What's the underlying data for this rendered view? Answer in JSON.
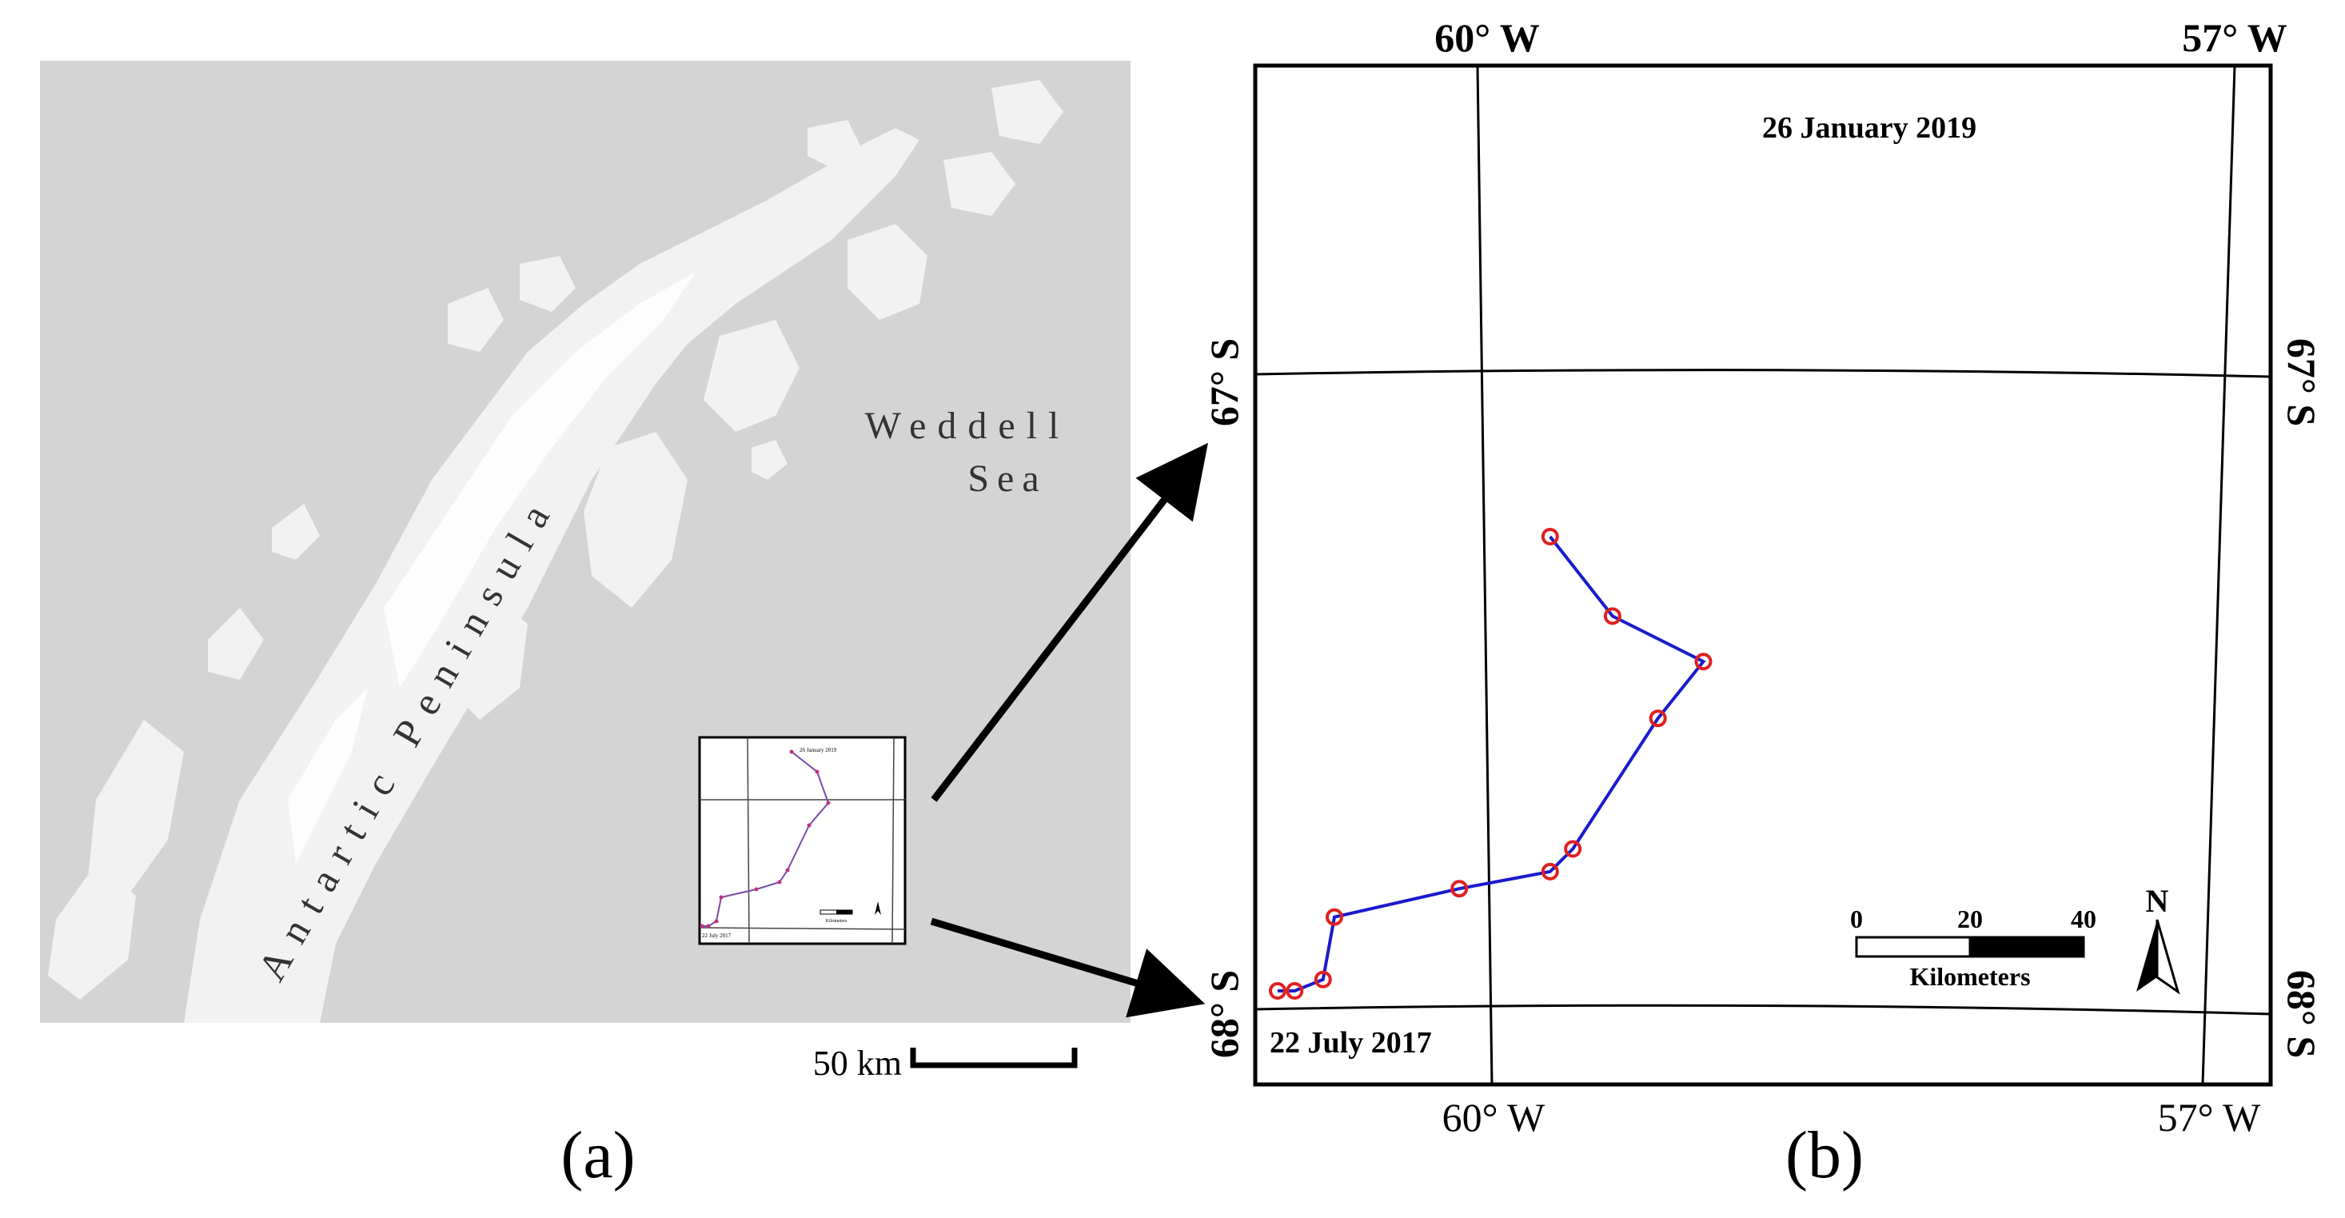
{
  "panel_a": {
    "caption": "(a)",
    "peninsula_label": "Antartic Peninsula",
    "sea_label_line1": "Weddell",
    "sea_label_line2": "Sea",
    "scale_bar_label": "50 km",
    "colors": {
      "sea": "#d4d4d4",
      "land": "#f2f2f2",
      "land_shade": "#ffffff"
    }
  },
  "panel_b": {
    "caption": "(b)",
    "lon_labels": {
      "left": "60° W",
      "right": "57° W"
    },
    "lat_labels": {
      "upper": "67° S",
      "lower": "68° S"
    },
    "start_label": "22 July 2017",
    "end_label": "26 January 2019",
    "scale": {
      "tick_0": "0",
      "tick_1": "20",
      "tick_2": "40",
      "unit": "Kilometers"
    },
    "north_arrow_label": "N",
    "track": {
      "color": "#1a1acc",
      "marker_color": "#e02020",
      "points_km_from_origin": [
        [
          0,
          0
        ],
        [
          3,
          0
        ],
        [
          8,
          2
        ],
        [
          10,
          13
        ],
        [
          32,
          18
        ],
        [
          48,
          21
        ],
        [
          52,
          25
        ],
        [
          67,
          48
        ],
        [
          75,
          58
        ],
        [
          59,
          66
        ],
        [
          48,
          80
        ]
      ]
    }
  }
}
